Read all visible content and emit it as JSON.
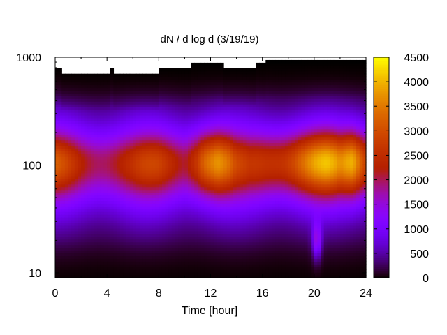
{
  "chart_data": {
    "type": "heatmap",
    "title": "dN / d log d (3/19/19)",
    "xlabel": "Time [hour]",
    "ylabel": "",
    "x_ticks": [
      "0",
      "4",
      "8",
      "12",
      "16",
      "20",
      "24"
    ],
    "x_range": [
      0,
      24
    ],
    "y_scale": "log",
    "y_ticks": [
      "10",
      "100",
      "1000"
    ],
    "y_range": [
      9,
      1000
    ],
    "colorbar": {
      "range": [
        0,
        4500
      ],
      "ticks": [
        "0",
        "500",
        "1000",
        "1500",
        "2000",
        "2500",
        "3000",
        "3500",
        "4000",
        "4500"
      ],
      "palette": [
        "#000000",
        "#3a0070",
        "#7f00ff",
        "#c010c0",
        "#d23a10",
        "#e07010",
        "#f0a010",
        "#ffe030"
      ]
    },
    "data_top_diameter_by_hour": [
      {
        "hour": 0,
        "top": 800
      },
      {
        "hour": 0.6,
        "top": 720
      },
      {
        "hour": 4.2,
        "top": 790
      },
      {
        "hour": 4.4,
        "top": 720
      },
      {
        "hour": 8,
        "top": 800
      },
      {
        "hour": 10.5,
        "top": 880
      },
      {
        "hour": 13,
        "top": 800
      },
      {
        "hour": 15.5,
        "top": 880
      },
      {
        "hour": 16.3,
        "top": 930
      }
    ],
    "peak_band": {
      "diameter_center": 110,
      "profile_by_hour": [
        {
          "hour": 0,
          "peak": 2600
        },
        {
          "hour": 2,
          "peak": 2200
        },
        {
          "hour": 6,
          "peak": 2100
        },
        {
          "hour": 8,
          "peak": 2400
        },
        {
          "hour": 10,
          "peak": 2300
        },
        {
          "hour": 11.5,
          "peak": 3700
        },
        {
          "hour": 12.5,
          "peak": 3600
        },
        {
          "hour": 14,
          "peak": 2300
        },
        {
          "hour": 15,
          "peak": 2200
        },
        {
          "hour": 17,
          "peak": 3000
        },
        {
          "hour": 19,
          "peak": 3400
        },
        {
          "hour": 21,
          "peak": 3500
        },
        {
          "hour": 22,
          "peak": 3300
        },
        {
          "hour": 23,
          "peak": 4300
        },
        {
          "hour": 24,
          "peak": 3400
        }
      ]
    },
    "low_feature": {
      "hour": 20.2,
      "diameter": 20,
      "value": 2000
    }
  }
}
